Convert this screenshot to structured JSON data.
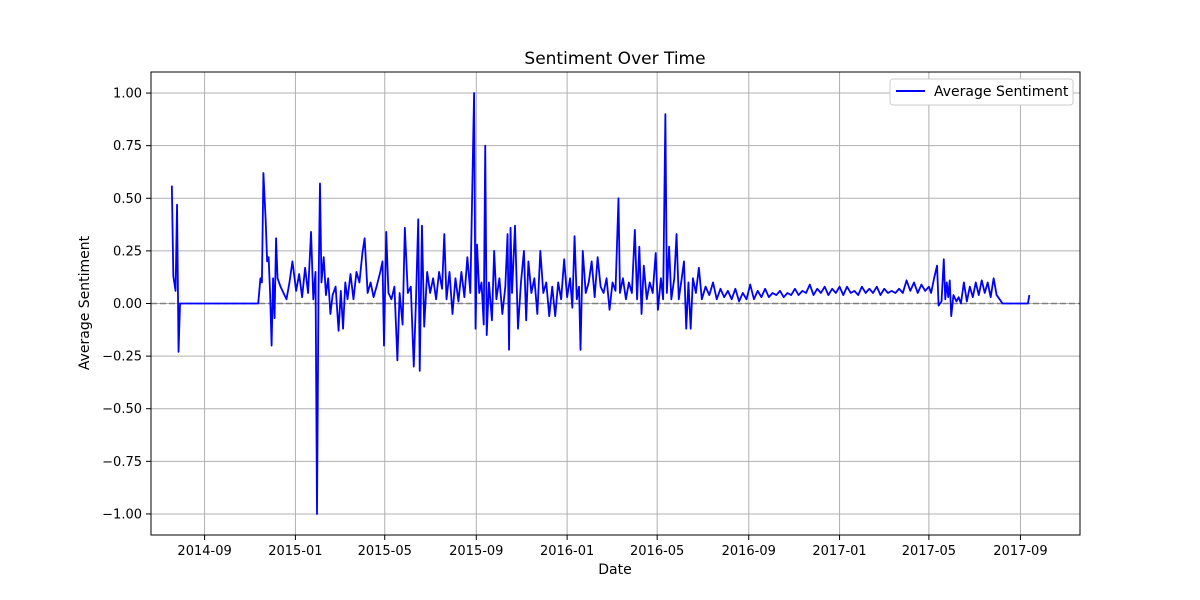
{
  "chart_data": {
    "type": "line",
    "title": "Sentiment Over Time",
    "xlabel": "Date",
    "ylabel": "Average Sentiment",
    "ylim": [
      -1.1,
      1.1
    ],
    "xlim": [
      "2014-06-21",
      "2017-11-20"
    ],
    "grid": true,
    "legend_position": "top-right",
    "reference_line": {
      "y": 0,
      "style": "dashed",
      "color": "#808080"
    },
    "x_ticks": [
      "2014-09",
      "2015-01",
      "2015-05",
      "2015-09",
      "2016-01",
      "2016-05",
      "2016-09",
      "2017-01",
      "2017-05",
      "2017-09"
    ],
    "y_ticks": [
      "1.00",
      "0.75",
      "0.50",
      "0.25",
      "0.00",
      "−0.25",
      "−0.50",
      "−0.75",
      "−1.00"
    ],
    "series": [
      {
        "name": "Average Sentiment",
        "color": "#0000ff",
        "points": [
          [
            "2014-07-19",
            0.56
          ],
          [
            "2014-07-21",
            0.13
          ],
          [
            "2014-07-24",
            0.06
          ],
          [
            "2014-07-26",
            0.47
          ],
          [
            "2014-07-28",
            -0.23
          ],
          [
            "2014-07-30",
            0.0
          ],
          [
            "2014-08-15",
            0.0
          ],
          [
            "2014-09-15",
            0.0
          ],
          [
            "2014-10-15",
            0.0
          ],
          [
            "2014-11-12",
            0.0
          ],
          [
            "2014-11-15",
            0.12
          ],
          [
            "2014-11-17",
            0.1
          ],
          [
            "2014-11-19",
            0.62
          ],
          [
            "2014-11-22",
            0.4
          ],
          [
            "2014-11-24",
            0.2
          ],
          [
            "2014-11-26",
            0.22
          ],
          [
            "2014-11-28",
            0.05
          ],
          [
            "2014-11-30",
            -0.2
          ],
          [
            "2014-12-02",
            0.12
          ],
          [
            "2014-12-04",
            -0.07
          ],
          [
            "2014-12-06",
            0.31
          ],
          [
            "2014-12-08",
            0.12
          ],
          [
            "2014-12-12",
            0.08
          ],
          [
            "2014-12-16",
            0.05
          ],
          [
            "2014-12-20",
            0.02
          ],
          [
            "2014-12-24",
            0.1
          ],
          [
            "2014-12-28",
            0.2
          ],
          [
            "2015-01-02",
            0.06
          ],
          [
            "2015-01-06",
            0.14
          ],
          [
            "2015-01-10",
            0.03
          ],
          [
            "2015-01-14",
            0.17
          ],
          [
            "2015-01-18",
            0.05
          ],
          [
            "2015-01-22",
            0.34
          ],
          [
            "2015-01-25",
            0.02
          ],
          [
            "2015-01-28",
            0.15
          ],
          [
            "2015-01-30",
            -1.0
          ],
          [
            "2015-02-01",
            0.05
          ],
          [
            "2015-02-03",
            0.57
          ],
          [
            "2015-02-05",
            0.1
          ],
          [
            "2015-02-08",
            0.22
          ],
          [
            "2015-02-11",
            0.04
          ],
          [
            "2015-02-14",
            0.12
          ],
          [
            "2015-02-17",
            -0.05
          ],
          [
            "2015-02-20",
            0.04
          ],
          [
            "2015-02-24",
            0.08
          ],
          [
            "2015-02-28",
            -0.13
          ],
          [
            "2015-03-03",
            0.06
          ],
          [
            "2015-03-06",
            -0.12
          ],
          [
            "2015-03-09",
            0.1
          ],
          [
            "2015-03-12",
            0.02
          ],
          [
            "2015-03-16",
            0.14
          ],
          [
            "2015-03-20",
            0.02
          ],
          [
            "2015-03-24",
            0.15
          ],
          [
            "2015-03-28",
            0.1
          ],
          [
            "2015-04-01",
            0.24
          ],
          [
            "2015-04-04",
            0.31
          ],
          [
            "2015-04-08",
            0.05
          ],
          [
            "2015-04-12",
            0.1
          ],
          [
            "2015-04-16",
            0.03
          ],
          [
            "2015-04-20",
            0.08
          ],
          [
            "2015-04-25",
            0.15
          ],
          [
            "2015-04-28",
            0.2
          ],
          [
            "2015-04-30",
            -0.2
          ],
          [
            "2015-05-03",
            0.34
          ],
          [
            "2015-05-06",
            0.05
          ],
          [
            "2015-05-10",
            0.02
          ],
          [
            "2015-05-14",
            0.08
          ],
          [
            "2015-05-18",
            -0.27
          ],
          [
            "2015-05-21",
            0.05
          ],
          [
            "2015-05-25",
            -0.1
          ],
          [
            "2015-05-28",
            0.36
          ],
          [
            "2015-06-01",
            0.05
          ],
          [
            "2015-06-05",
            0.08
          ],
          [
            "2015-06-09",
            -0.3
          ],
          [
            "2015-06-12",
            0.02
          ],
          [
            "2015-06-15",
            0.4
          ],
          [
            "2015-06-17",
            -0.32
          ],
          [
            "2015-06-20",
            0.37
          ],
          [
            "2015-06-23",
            -0.11
          ],
          [
            "2015-06-27",
            0.15
          ],
          [
            "2015-07-01",
            0.05
          ],
          [
            "2015-07-05",
            0.12
          ],
          [
            "2015-07-09",
            0.02
          ],
          [
            "2015-07-13",
            0.15
          ],
          [
            "2015-07-17",
            0.07
          ],
          [
            "2015-07-20",
            0.33
          ],
          [
            "2015-07-23",
            0.02
          ],
          [
            "2015-07-27",
            0.15
          ],
          [
            "2015-07-31",
            -0.05
          ],
          [
            "2015-08-04",
            0.12
          ],
          [
            "2015-08-08",
            0.01
          ],
          [
            "2015-08-12",
            0.15
          ],
          [
            "2015-08-16",
            0.03
          ],
          [
            "2015-08-20",
            0.22
          ],
          [
            "2015-08-24",
            0.05
          ],
          [
            "2015-08-29",
            1.0
          ],
          [
            "2015-08-31",
            -0.12
          ],
          [
            "2015-09-02",
            0.28
          ],
          [
            "2015-09-05",
            0.05
          ],
          [
            "2015-09-08",
            0.1
          ],
          [
            "2015-09-11",
            -0.1
          ],
          [
            "2015-09-13",
            0.75
          ],
          [
            "2015-09-15",
            -0.15
          ],
          [
            "2015-09-18",
            0.1
          ],
          [
            "2015-09-22",
            -0.08
          ],
          [
            "2015-09-25",
            0.25
          ],
          [
            "2015-09-28",
            0.02
          ],
          [
            "2015-10-02",
            0.12
          ],
          [
            "2015-10-06",
            -0.05
          ],
          [
            "2015-10-10",
            0.08
          ],
          [
            "2015-10-13",
            0.33
          ],
          [
            "2015-10-15",
            -0.22
          ],
          [
            "2015-10-17",
            0.36
          ],
          [
            "2015-10-19",
            0.05
          ],
          [
            "2015-10-23",
            0.37
          ],
          [
            "2015-10-27",
            -0.12
          ],
          [
            "2015-10-31",
            0.1
          ],
          [
            "2015-11-04",
            0.25
          ],
          [
            "2015-11-07",
            -0.08
          ],
          [
            "2015-11-10",
            0.2
          ],
          [
            "2015-11-14",
            0.05
          ],
          [
            "2015-11-18",
            0.12
          ],
          [
            "2015-11-22",
            -0.05
          ],
          [
            "2015-11-26",
            0.25
          ],
          [
            "2015-11-30",
            0.05
          ],
          [
            "2015-12-04",
            0.1
          ],
          [
            "2015-12-08",
            -0.06
          ],
          [
            "2015-12-12",
            0.08
          ],
          [
            "2015-12-16",
            -0.06
          ],
          [
            "2015-12-20",
            0.1
          ],
          [
            "2015-12-24",
            0.02
          ],
          [
            "2015-12-28",
            0.21
          ],
          [
            "2016-01-01",
            0.03
          ],
          [
            "2016-01-05",
            0.12
          ],
          [
            "2016-01-08",
            -0.02
          ],
          [
            "2016-01-11",
            0.32
          ],
          [
            "2016-01-14",
            0.02
          ],
          [
            "2016-01-17",
            0.08
          ],
          [
            "2016-01-19",
            -0.22
          ],
          [
            "2016-01-22",
            0.25
          ],
          [
            "2016-01-26",
            0.05
          ],
          [
            "2016-01-30",
            0.1
          ],
          [
            "2016-02-03",
            0.2
          ],
          [
            "2016-02-07",
            0.03
          ],
          [
            "2016-02-11",
            0.22
          ],
          [
            "2016-02-15",
            0.08
          ],
          [
            "2016-02-19",
            0.05
          ],
          [
            "2016-02-23",
            0.12
          ],
          [
            "2016-02-27",
            -0.03
          ],
          [
            "2016-03-02",
            0.1
          ],
          [
            "2016-03-06",
            0.06
          ],
          [
            "2016-03-10",
            0.5
          ],
          [
            "2016-03-12",
            0.05
          ],
          [
            "2016-03-16",
            0.12
          ],
          [
            "2016-03-20",
            0.02
          ],
          [
            "2016-03-24",
            0.1
          ],
          [
            "2016-03-28",
            0.05
          ],
          [
            "2016-04-01",
            0.35
          ],
          [
            "2016-04-04",
            0.02
          ],
          [
            "2016-04-07",
            0.27
          ],
          [
            "2016-04-10",
            -0.05
          ],
          [
            "2016-04-13",
            0.18
          ],
          [
            "2016-04-17",
            0.02
          ],
          [
            "2016-04-21",
            0.1
          ],
          [
            "2016-04-25",
            0.05
          ],
          [
            "2016-04-29",
            0.24
          ],
          [
            "2016-05-02",
            -0.03
          ],
          [
            "2016-05-06",
            0.12
          ],
          [
            "2016-05-09",
            0.02
          ],
          [
            "2016-05-12",
            0.9
          ],
          [
            "2016-05-14",
            0.05
          ],
          [
            "2016-05-17",
            0.27
          ],
          [
            "2016-05-20",
            0.02
          ],
          [
            "2016-05-24",
            0.12
          ],
          [
            "2016-05-27",
            0.33
          ],
          [
            "2016-05-30",
            0.02
          ],
          [
            "2016-06-03",
            0.12
          ],
          [
            "2016-06-06",
            0.2
          ],
          [
            "2016-06-09",
            -0.12
          ],
          [
            "2016-06-12",
            0.1
          ],
          [
            "2016-06-15",
            -0.12
          ],
          [
            "2016-06-18",
            0.12
          ],
          [
            "2016-06-22",
            0.05
          ],
          [
            "2016-06-26",
            0.17
          ],
          [
            "2016-06-30",
            0.02
          ],
          [
            "2016-07-05",
            0.08
          ],
          [
            "2016-07-10",
            0.04
          ],
          [
            "2016-07-15",
            0.1
          ],
          [
            "2016-07-20",
            0.02
          ],
          [
            "2016-07-25",
            0.07
          ],
          [
            "2016-07-30",
            0.03
          ],
          [
            "2016-08-04",
            0.06
          ],
          [
            "2016-08-09",
            0.02
          ],
          [
            "2016-08-14",
            0.07
          ],
          [
            "2016-08-19",
            0.01
          ],
          [
            "2016-08-24",
            0.05
          ],
          [
            "2016-08-29",
            0.02
          ],
          [
            "2016-09-03",
            0.09
          ],
          [
            "2016-09-08",
            0.02
          ],
          [
            "2016-09-13",
            0.06
          ],
          [
            "2016-09-18",
            0.03
          ],
          [
            "2016-09-23",
            0.07
          ],
          [
            "2016-09-28",
            0.03
          ],
          [
            "2016-10-03",
            0.05
          ],
          [
            "2016-10-08",
            0.04
          ],
          [
            "2016-10-13",
            0.06
          ],
          [
            "2016-10-18",
            0.03
          ],
          [
            "2016-10-23",
            0.05
          ],
          [
            "2016-10-28",
            0.04
          ],
          [
            "2016-11-02",
            0.07
          ],
          [
            "2016-11-07",
            0.04
          ],
          [
            "2016-11-12",
            0.06
          ],
          [
            "2016-11-17",
            0.05
          ],
          [
            "2016-11-22",
            0.09
          ],
          [
            "2016-11-27",
            0.04
          ],
          [
            "2016-12-02",
            0.07
          ],
          [
            "2016-12-07",
            0.05
          ],
          [
            "2016-12-12",
            0.08
          ],
          [
            "2016-12-17",
            0.04
          ],
          [
            "2016-12-22",
            0.07
          ],
          [
            "2016-12-27",
            0.05
          ],
          [
            "2017-01-01",
            0.08
          ],
          [
            "2017-01-06",
            0.04
          ],
          [
            "2017-01-11",
            0.08
          ],
          [
            "2017-01-16",
            0.05
          ],
          [
            "2017-01-21",
            0.06
          ],
          [
            "2017-01-26",
            0.04
          ],
          [
            "2017-01-31",
            0.08
          ],
          [
            "2017-02-05",
            0.05
          ],
          [
            "2017-02-10",
            0.07
          ],
          [
            "2017-02-15",
            0.05
          ],
          [
            "2017-02-20",
            0.08
          ],
          [
            "2017-02-25",
            0.04
          ],
          [
            "2017-03-02",
            0.07
          ],
          [
            "2017-03-07",
            0.05
          ],
          [
            "2017-03-12",
            0.06
          ],
          [
            "2017-03-17",
            0.05
          ],
          [
            "2017-03-22",
            0.07
          ],
          [
            "2017-03-27",
            0.05
          ],
          [
            "2017-04-01",
            0.11
          ],
          [
            "2017-04-06",
            0.06
          ],
          [
            "2017-04-11",
            0.1
          ],
          [
            "2017-04-16",
            0.05
          ],
          [
            "2017-04-21",
            0.09
          ],
          [
            "2017-04-26",
            0.06
          ],
          [
            "2017-05-01",
            0.08
          ],
          [
            "2017-05-04",
            0.05
          ],
          [
            "2017-05-08",
            0.12
          ],
          [
            "2017-05-12",
            0.18
          ],
          [
            "2017-05-14",
            -0.01
          ],
          [
            "2017-05-18",
            0.01
          ],
          [
            "2017-05-21",
            0.21
          ],
          [
            "2017-05-23",
            0.02
          ],
          [
            "2017-05-25",
            0.1
          ],
          [
            "2017-05-27",
            0.03
          ],
          [
            "2017-05-29",
            0.11
          ],
          [
            "2017-05-31",
            -0.06
          ],
          [
            "2017-06-03",
            0.04
          ],
          [
            "2017-06-07",
            0.01
          ],
          [
            "2017-06-10",
            0.03
          ],
          [
            "2017-06-13",
            0.0
          ],
          [
            "2017-06-17",
            0.1
          ],
          [
            "2017-06-21",
            0.01
          ],
          [
            "2017-06-25",
            0.08
          ],
          [
            "2017-06-29",
            0.03
          ],
          [
            "2017-07-03",
            0.1
          ],
          [
            "2017-07-07",
            0.04
          ],
          [
            "2017-07-11",
            0.11
          ],
          [
            "2017-07-15",
            0.05
          ],
          [
            "2017-07-19",
            0.1
          ],
          [
            "2017-07-23",
            0.03
          ],
          [
            "2017-07-27",
            0.12
          ],
          [
            "2017-07-31",
            0.04
          ],
          [
            "2017-08-04",
            0.02
          ],
          [
            "2017-08-08",
            0.0
          ],
          [
            "2017-08-25",
            0.0
          ],
          [
            "2017-09-11",
            0.0
          ],
          [
            "2017-09-13",
            0.04
          ]
        ]
      }
    ]
  }
}
